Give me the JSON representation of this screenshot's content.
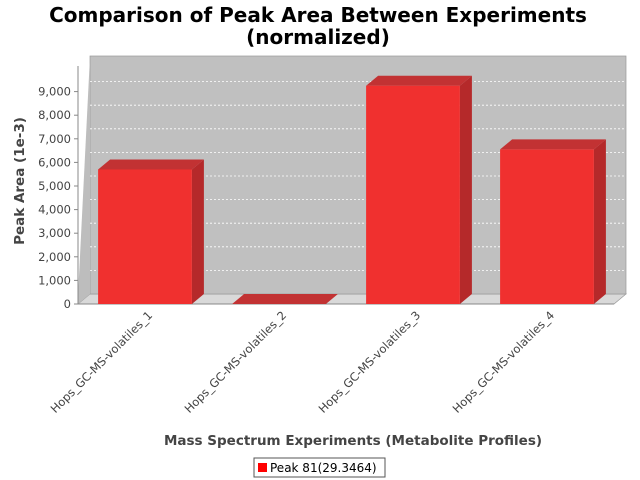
{
  "chart_data": {
    "type": "bar",
    "title": "Comparison of Peak Area Between Experiments",
    "subtitle": "(normalized)",
    "xlabel": "Mass Spectrum Experiments (Metabolite Profiles)",
    "ylabel": "Peak Area (1e-3)",
    "categories": [
      "Hops_GC-MS-volatiles_1",
      "Hops_GC-MS-volatiles_2",
      "Hops_GC-MS-volatiles_3",
      "Hops_GC-MS-volatiles_4"
    ],
    "series": [
      {
        "name": "Peak 81(29.3464)",
        "values": [
          5700,
          0,
          9250,
          6550
        ],
        "color": "#f0302f"
      }
    ],
    "ylim": [
      0,
      10000
    ],
    "yticks": [
      0,
      1000,
      2000,
      3000,
      4000,
      5000,
      6000,
      7000,
      8000,
      9000
    ],
    "yticklabels": [
      "0",
      "1,000",
      "2,000",
      "3,000",
      "4,000",
      "5,000",
      "6,000",
      "7,000",
      "8,000",
      "9,000"
    ],
    "grid": true,
    "style": "3d-bar",
    "plot_background": "#c0c0c0",
    "legend_position": "bottom-center"
  }
}
